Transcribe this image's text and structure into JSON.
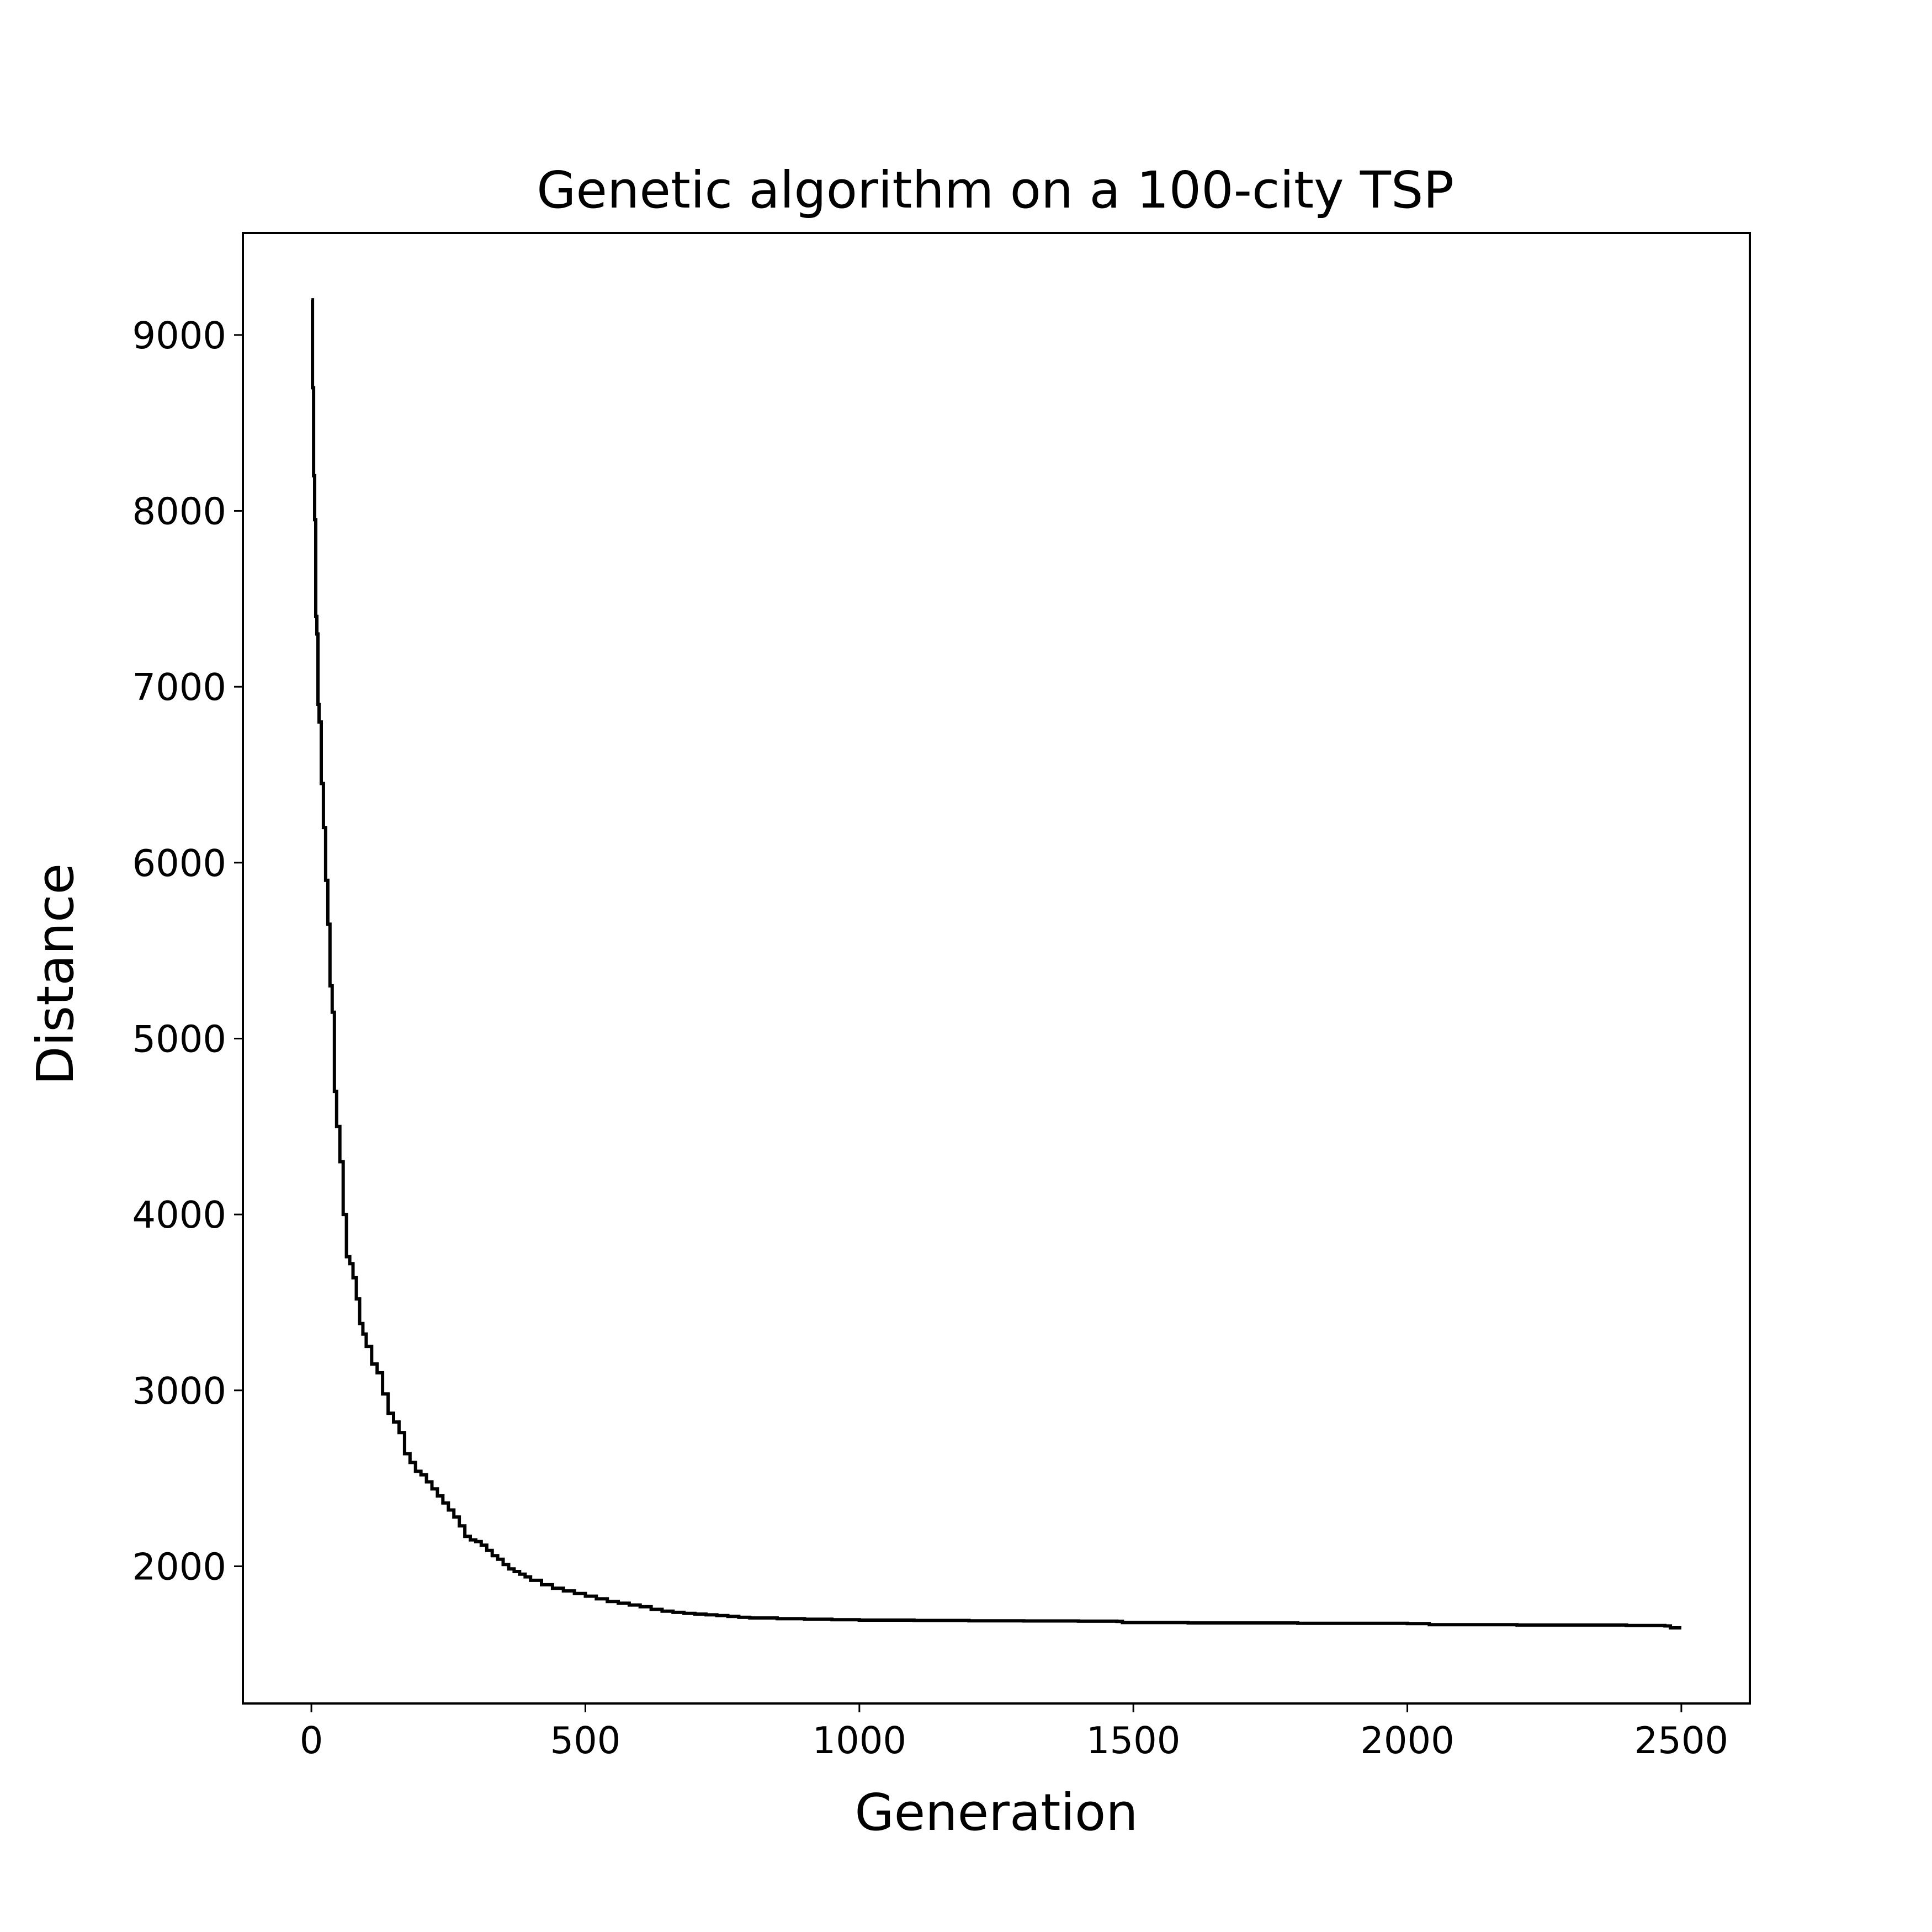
{
  "chart_data": {
    "type": "line",
    "title": "Genetic algorithm on a 100-city TSP",
    "xlabel": "Generation",
    "ylabel": "Distance",
    "xlim": [
      -125,
      2625
    ],
    "ylim": [
      1220,
      9580
    ],
    "xticks": [
      0,
      500,
      1000,
      1500,
      2000,
      2500
    ],
    "xtick_labels": [
      "0",
      "500",
      "1000",
      "1500",
      "2000",
      "2500"
    ],
    "yticks": [
      2000,
      3000,
      4000,
      5000,
      6000,
      7000,
      8000,
      9000
    ],
    "ytick_labels": [
      "2000",
      "3000",
      "4000",
      "5000",
      "6000",
      "7000",
      "8000",
      "9000"
    ],
    "grid": false,
    "line_color": "#000000",
    "series": [
      {
        "x": [
          0,
          2,
          4,
          6,
          8,
          10,
          12,
          14,
          18,
          22,
          26,
          30,
          34,
          38,
          42,
          46,
          52,
          58,
          64,
          70,
          76,
          82,
          88,
          94,
          100,
          110,
          120,
          130,
          140,
          150,
          160,
          170,
          180,
          190,
          200,
          210,
          220,
          230,
          240,
          250,
          260,
          270,
          280,
          290,
          300,
          310,
          320,
          330,
          340,
          350,
          360,
          370,
          380,
          390,
          400,
          420,
          440,
          460,
          480,
          500,
          520,
          540,
          560,
          580,
          600,
          620,
          640,
          660,
          680,
          700,
          720,
          740,
          760,
          780,
          800,
          850,
          900,
          950,
          1000,
          1100,
          1200,
          1300,
          1400,
          1470,
          1480,
          1600,
          1800,
          2000,
          2040,
          2200,
          2400,
          2470,
          2480,
          2500
        ],
        "y": [
          9200,
          8700,
          8200,
          7950,
          7400,
          7300,
          6900,
          6800,
          6450,
          6200,
          5900,
          5650,
          5300,
          5150,
          4700,
          4500,
          4300,
          4000,
          3760,
          3720,
          3640,
          3520,
          3380,
          3320,
          3250,
          3150,
          3100,
          2980,
          2870,
          2820,
          2760,
          2640,
          2590,
          2540,
          2520,
          2480,
          2440,
          2400,
          2360,
          2320,
          2280,
          2230,
          2170,
          2150,
          2140,
          2120,
          2090,
          2060,
          2040,
          2010,
          1985,
          1970,
          1955,
          1940,
          1920,
          1895,
          1875,
          1860,
          1845,
          1830,
          1815,
          1800,
          1790,
          1780,
          1770,
          1755,
          1745,
          1738,
          1732,
          1728,
          1724,
          1720,
          1715,
          1710,
          1706,
          1702,
          1699,
          1696,
          1694,
          1692,
          1690,
          1689,
          1688,
          1687,
          1680,
          1678,
          1676,
          1674,
          1668,
          1666,
          1663,
          1661,
          1650,
          1650
        ]
      }
    ]
  }
}
